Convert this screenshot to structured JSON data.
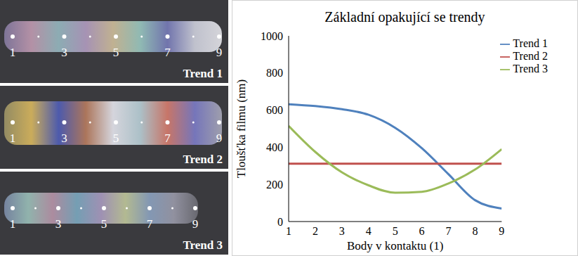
{
  "images": [
    {
      "label": "Trend 1",
      "points": [
        1,
        3,
        5,
        7,
        9
      ]
    },
    {
      "label": "Trend 2",
      "points": [
        1,
        3,
        5,
        7,
        9
      ]
    },
    {
      "label": "Trend 3",
      "points": [
        1,
        3,
        5,
        7,
        9
      ]
    }
  ],
  "chart_data": {
    "type": "line",
    "title": "Základní opakující se trendy",
    "x_label": "Body v kontaktu  (1)",
    "y_label": "Tloušťka filmu (nm)",
    "x": [
      1,
      2,
      3,
      4,
      5,
      6,
      7,
      8,
      9
    ],
    "series": [
      {
        "name": "Trend 1",
        "color": "#4f81bd",
        "values": [
          632,
          622,
          605,
          575,
          505,
          395,
          255,
          115,
          70
        ]
      },
      {
        "name": "Trend 2",
        "color": "#c0504d",
        "values": [
          312,
          312,
          312,
          312,
          312,
          312,
          312,
          312,
          312
        ]
      },
      {
        "name": "Trend 3",
        "color": "#9bbb59",
        "values": [
          515,
          375,
          265,
          195,
          155,
          160,
          205,
          280,
          390
        ]
      }
    ],
    "xlim": [
      1,
      9
    ],
    "xticks": [
      1,
      2,
      3,
      4,
      5,
      6,
      7,
      8,
      9
    ],
    "ylim": [
      0,
      1000
    ],
    "yticks": [
      0,
      200,
      400,
      600,
      800,
      1000
    ],
    "grid": false,
    "legend": "upper right",
    "line_style": "solid"
  }
}
